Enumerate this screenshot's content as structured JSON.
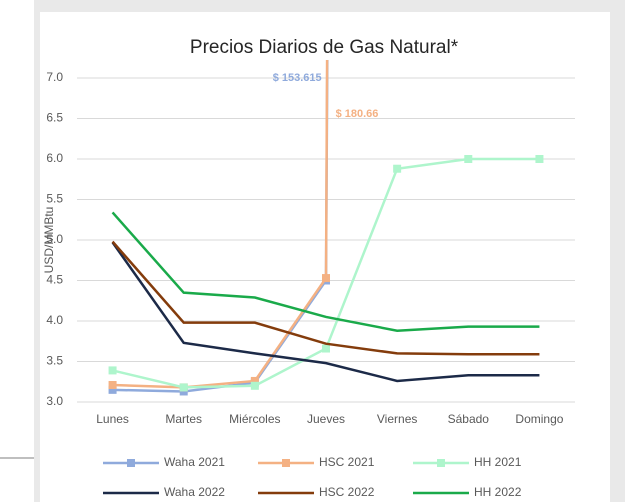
{
  "chart_data": {
    "type": "line",
    "title": "Precios Diarios de Gas Natural*",
    "y_label": "USD/MMBtu",
    "categories": [
      "Lunes",
      "Martes",
      "Miércoles",
      "Jueves",
      "Viernes",
      "Sábado",
      "Domingo"
    ],
    "ylim": [
      3.0,
      7.0
    ],
    "yticks": [
      {
        "value": 3.0,
        "label": "3.0"
      },
      3.5,
      {
        "value": 4.0,
        "label": "4.0"
      },
      4.5,
      {
        "value": 5.0,
        "label": "5.0"
      },
      5.5,
      {
        "value": 6.0,
        "label": "6.0"
      },
      6.5,
      {
        "value": 7.0,
        "label": "7.0"
      }
    ],
    "grid": true,
    "series": [
      {
        "name": "Waha 2021",
        "color": "#8faadc",
        "marker": true,
        "values": [
          3.15,
          3.13,
          3.24,
          4.5,
          153.615,
          null,
          null
        ],
        "value_labels": [
          null,
          null,
          null,
          null,
          "$ 153.615",
          null,
          null
        ]
      },
      {
        "name": "HSC 2021",
        "color": "#f4b183",
        "marker": true,
        "values": [
          3.21,
          3.18,
          3.26,
          4.53,
          180.66,
          null,
          null
        ],
        "value_labels": [
          null,
          null,
          null,
          null,
          "$ 180.66",
          null,
          null
        ]
      },
      {
        "name": "HH 2021",
        "color": "#aef5cc",
        "marker": true,
        "values": [
          3.39,
          3.18,
          3.2,
          3.66,
          5.88,
          6.0,
          6.0
        ]
      },
      {
        "name": "Waha 2022",
        "color": "#1c2a48",
        "marker": false,
        "values": [
          4.97,
          3.73,
          3.6,
          3.48,
          3.26,
          3.33,
          3.33
        ]
      },
      {
        "name": "HSC 2022",
        "color": "#843c0c",
        "marker": false,
        "values": [
          4.98,
          3.98,
          3.98,
          3.72,
          3.6,
          3.59,
          3.59
        ]
      },
      {
        "name": "HH 2022",
        "color": "#1aaa4a",
        "marker": false,
        "values": [
          5.34,
          4.35,
          4.29,
          4.05,
          3.88,
          3.93,
          3.93
        ]
      }
    ]
  }
}
